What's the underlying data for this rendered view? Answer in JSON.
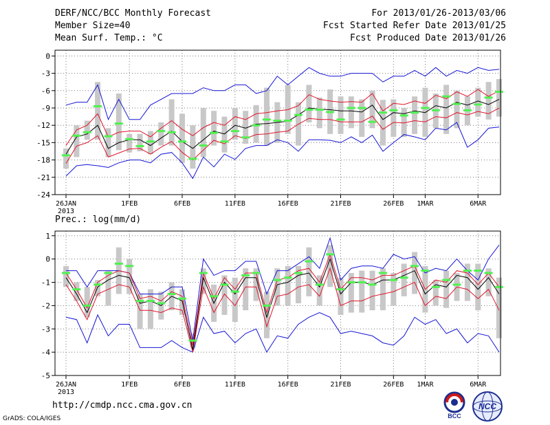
{
  "header": {
    "left": [
      "DERF/NCC/BCC Monthly Forecast",
      "Member Size=40",
      "Mean Surf. Temp.: °C"
    ],
    "right": [
      "For 2013/01/26-2013/03/06",
      "Fcst Started Refer Date 2013/01/25",
      "Fcst Produced Date 2013/01/26"
    ]
  },
  "footer": {
    "url": "http://cmdp.ncc.cma.gov.cn",
    "grads": "GrADS: COLA/IGES",
    "logo_bcc": "BCC",
    "logo_ncc": "NCC"
  },
  "colors": {
    "box": "#c8c8c8",
    "median": "#4ff24f",
    "mean": "#000000",
    "inner": "#e0142a",
    "outer": "#1414d6"
  },
  "chart_data": [
    {
      "type": "line",
      "title": "Mean Surf. Temp.: °C",
      "x_ticks": [
        "26JAN",
        "1FEB",
        "6FEB",
        "11FEB",
        "16FEB",
        "21FEB",
        "26FEB",
        "1MAR",
        "6MAR"
      ],
      "x_tick_days": [
        0,
        6,
        11,
        16,
        21,
        26,
        31,
        34,
        39
      ],
      "x_sublabel": "2013",
      "ylim": [
        -24,
        1
      ],
      "y_ticks": [
        0,
        -3,
        -6,
        -9,
        -12,
        -15,
        -18,
        -21,
        -24
      ],
      "series": [
        {
          "name": "mean",
          "values": [
            -17,
            -14,
            -13.5,
            -12,
            -16,
            -15,
            -14.5,
            -14.5,
            -15.5,
            -14.2,
            -13,
            -14.8,
            -16,
            -14.5,
            -13,
            -13.5,
            -12,
            -12.5,
            -11.8,
            -11.7,
            -11.5,
            -11.3,
            -10.2,
            -9,
            -9.2,
            -9.3,
            -9.5,
            -9.5,
            -9.7,
            -8.5,
            -11,
            -9.8,
            -10,
            -9.5,
            -9.8,
            -8.6,
            -9,
            -8,
            -8.5,
            -7.8,
            -8.4,
            -7.5
          ]
        },
        {
          "name": "upper-inner",
          "values": [
            -15.5,
            -12.8,
            -12,
            -10,
            -14,
            -13.2,
            -13,
            -13,
            -14,
            -12.5,
            -11.2,
            -12.7,
            -13.8,
            -12.4,
            -11.5,
            -12,
            -10.5,
            -11,
            -10,
            -9.8,
            -9.5,
            -9.3,
            -8.6,
            -6.7,
            -7.5,
            -7.8,
            -8,
            -7.9,
            -8,
            -6.5,
            -9.5,
            -8.2,
            -8.4,
            -7.8,
            -8.2,
            -6.8,
            -7.4,
            -6.2,
            -7,
            -5.8,
            -7,
            -6
          ]
        },
        {
          "name": "lower-inner",
          "values": [
            -18.6,
            -15.6,
            -15,
            -13.8,
            -17.5,
            -16.8,
            -16.1,
            -16,
            -17,
            -15.8,
            -14.8,
            -16.7,
            -18,
            -16.3,
            -14.6,
            -15.2,
            -13.8,
            -14.3,
            -13.6,
            -13.5,
            -13.2,
            -13,
            -11.8,
            -10.8,
            -11,
            -11,
            -11.4,
            -11.4,
            -11.4,
            -10.4,
            -12.7,
            -11.5,
            -11.6,
            -11.2,
            -11.4,
            -10.5,
            -10.7,
            -9.8,
            -10.2,
            -9.6,
            -10,
            -9
          ]
        },
        {
          "name": "upper-outer",
          "values": [
            -8.5,
            -8,
            -8,
            -5,
            -11,
            -7.5,
            -11,
            -11,
            -8.5,
            -7.5,
            -6.5,
            -6.5,
            -6.5,
            -5.5,
            -6,
            -6,
            -5,
            -5,
            -6.5,
            -6,
            -3.5,
            -5,
            -3.5,
            -2,
            -3,
            -3.5,
            -3.5,
            -3,
            -3,
            -3,
            -4.5,
            -3.5,
            -3.5,
            -2.5,
            -3.5,
            -2,
            -3.5,
            -2.5,
            -3,
            -2,
            -2.5,
            -2.3
          ]
        },
        {
          "name": "lower-outer",
          "values": [
            -20.8,
            -19,
            -18.8,
            -19,
            -19.3,
            -18.5,
            -18,
            -18,
            -18.5,
            -17,
            -16.7,
            -18.5,
            -21.2,
            -17.5,
            -19.2,
            -17,
            -17.9,
            -16,
            -15.5,
            -15.5,
            -14.5,
            -15,
            -16.5,
            -14.5,
            -14.5,
            -14.6,
            -15,
            -14,
            -15,
            -13.7,
            -16.5,
            -15,
            -13.6,
            -14,
            -14.5,
            -12.5,
            -12.8,
            -11.5,
            -15.8,
            -14.5,
            -12.5,
            -12.3
          ]
        },
        {
          "name": "median",
          "values": [
            -17.2,
            -13.8,
            -13.2,
            -8.7,
            -13.9,
            -11.7,
            -14.4,
            -15.6,
            -14.8,
            -13,
            -13.2,
            -14.8,
            -17.8,
            -15.5,
            -13.3,
            -14.8,
            -13,
            -14.1,
            -12,
            -11,
            -11.2,
            -11.2,
            -10.2,
            -9.3,
            -9.3,
            -9.7,
            -11,
            -9,
            -9,
            -11.4,
            -9.8,
            -9.4,
            -10.3,
            -9.8,
            -9,
            -9.4,
            -7,
            -8.3,
            -9.4,
            -8.4,
            -7.2,
            -6.2
          ]
        },
        {
          "name": "box-top",
          "values": [
            -16,
            -12,
            -11.2,
            -4.5,
            -12.5,
            -6.5,
            -13.5,
            -13.5,
            -13,
            -11.5,
            -7.5,
            -10,
            -12,
            -9,
            -9.5,
            -10.5,
            -9,
            -9.5,
            -8.5,
            -5.5,
            -8,
            -5,
            -8,
            -5,
            -7.2,
            -5.8,
            -7,
            -7,
            -7.5,
            -6,
            -7.6,
            -7.5,
            -9,
            -7,
            -5.5,
            -6.5,
            -5,
            -6,
            -7,
            -5.5,
            -4.5,
            -4
          ]
        },
        {
          "name": "box-bottom",
          "values": [
            -19.5,
            -17.5,
            -14.5,
            -14.5,
            -17.5,
            -16.3,
            -16.7,
            -16.5,
            -17,
            -15.5,
            -15.5,
            -18.5,
            -19.5,
            -17.5,
            -15.5,
            -16.7,
            -14.5,
            -15.2,
            -15,
            -15.5,
            -15,
            -13.5,
            -15.5,
            -11.5,
            -12.5,
            -13.5,
            -13.5,
            -12.5,
            -14,
            -12.5,
            -15.5,
            -14,
            -14,
            -13.5,
            -14,
            -12.5,
            -13.5,
            -12.5,
            -12,
            -10.5,
            -11,
            -10.5
          ]
        }
      ]
    },
    {
      "type": "line",
      "title": "Prec.: log(mm/d)",
      "x_ticks": [
        "26JAN",
        "1FEB",
        "6FEB",
        "11FEB",
        "16FEB",
        "21FEB",
        "26FEB",
        "1MAR",
        "6MAR"
      ],
      "x_tick_days": [
        0,
        6,
        11,
        16,
        21,
        26,
        31,
        34,
        39
      ],
      "x_sublabel": "2013",
      "ylim": [
        -5,
        1.2
      ],
      "y_ticks": [
        1,
        0,
        -1,
        -2,
        -3,
        -4,
        -5
      ],
      "series": [
        {
          "name": "mean",
          "values": [
            -0.8,
            -1.5,
            -2.3,
            -1.2,
            -0.9,
            -0.7,
            -0.8,
            -1.9,
            -1.8,
            -2,
            -1.6,
            -1.8,
            -3.9,
            -0.8,
            -1.9,
            -1,
            -1.5,
            -0.8,
            -0.8,
            -2.5,
            -1.1,
            -1,
            -0.7,
            -0.6,
            -1.2,
            0,
            -1.5,
            -1,
            -1,
            -1.1,
            -0.9,
            -0.9,
            -0.7,
            -0.5,
            -1.5,
            -1.1,
            -1.2,
            -0.7,
            -0.8,
            -1.3,
            -0.8,
            -1.5
          ]
        },
        {
          "name": "upper-inner",
          "values": [
            -0.6,
            -1.3,
            -2.1,
            -1,
            -0.7,
            -0.5,
            -0.6,
            -1.7,
            -1.6,
            -1.8,
            -1.4,
            -1.6,
            -3.7,
            -0.6,
            -1.7,
            -0.8,
            -1.3,
            -0.6,
            -0.6,
            -2.3,
            -0.9,
            -0.8,
            -0.5,
            -0.4,
            -1,
            0.2,
            -1.3,
            -0.8,
            -0.8,
            -0.9,
            -0.7,
            -0.7,
            -0.5,
            -0.3,
            -1.3,
            -0.9,
            -1,
            -0.5,
            -0.6,
            -1.1,
            -0.6,
            -1.2
          ]
        },
        {
          "name": "lower-inner",
          "values": [
            -1.1,
            -1.8,
            -2.6,
            -1.5,
            -1.3,
            -1.1,
            -1.2,
            -2.2,
            -2.2,
            -2.3,
            -2.1,
            -2.2,
            -4,
            -1.2,
            -2.3,
            -1.5,
            -2,
            -1.2,
            -1.2,
            -2.9,
            -1.6,
            -1.5,
            -1.2,
            -1.1,
            -1.6,
            -0.4,
            -2,
            -1.8,
            -1.8,
            -1.6,
            -1.5,
            -1.4,
            -1.2,
            -1,
            -2,
            -1.6,
            -1.7,
            -1.2,
            -1.3,
            -1.7,
            -1.3,
            -2.2
          ]
        },
        {
          "name": "upper-outer",
          "values": [
            -0.5,
            -0.5,
            -1.2,
            -0.5,
            -0.5,
            -0.5,
            -0.6,
            -1.5,
            -1.5,
            -1.5,
            -1.2,
            -1.2,
            -3.5,
            0,
            -0.7,
            -0.5,
            -0.5,
            -0.1,
            -0.1,
            -1.5,
            -0.5,
            -0.5,
            -0.2,
            0.1,
            -0.4,
            0.9,
            -0.9,
            -0.4,
            -0.3,
            -0.3,
            -0.4,
            0.2,
            0,
            0.1,
            -0.6,
            -0.4,
            -0.5,
            0,
            -0.5,
            -0.9,
            0,
            0.6
          ]
        },
        {
          "name": "lower-outer",
          "values": [
            -2.5,
            -2.6,
            -3.6,
            -2.4,
            -3.3,
            -2.8,
            -2.8,
            -3.8,
            -3.8,
            -3.8,
            -3.5,
            -3.8,
            -4,
            -2.5,
            -3.2,
            -3.1,
            -3.6,
            -3.2,
            -3,
            -4,
            -3.3,
            -3.4,
            -2.8,
            -2.5,
            -2.3,
            -2.5,
            -3.2,
            -3.1,
            -3.2,
            -3.3,
            -3.6,
            -3.7,
            -3.3,
            -2.5,
            -2.8,
            -2.6,
            -3.2,
            -3,
            -3.6,
            -3.2,
            -3.3,
            -4
          ]
        },
        {
          "name": "median",
          "values": [
            -0.6,
            -1.3,
            -2,
            -1.1,
            -0.6,
            -0.2,
            -0.3,
            -1.8,
            -1.8,
            -1.9,
            -1.5,
            -1.7,
            -3.5,
            -0.6,
            -1.6,
            -1.1,
            -1.4,
            -0.7,
            -0.6,
            -2,
            -0.9,
            -0.8,
            -0.6,
            -0.1,
            -1.1,
            0.2,
            -1.3,
            -1,
            -1,
            -1.1,
            -0.6,
            -0.9,
            -0.8,
            -0.3,
            -0.5,
            -1.2,
            -0.9,
            -1.1,
            -0.5,
            -0.5,
            -0.6,
            -1.2
          ]
        },
        {
          "name": "box-top",
          "values": [
            -0.3,
            -1,
            -1.2,
            -0.9,
            -0.5,
            0.5,
            0,
            -1.5,
            -1.3,
            -1.4,
            -1,
            -1.3,
            -3.2,
            -0.4,
            -1.1,
            -0.7,
            -0.8,
            -0.4,
            -0.4,
            -1.4,
            -0.4,
            -0.3,
            -0.3,
            0.5,
            -0.7,
            0.6,
            -0.8,
            -0.6,
            -0.5,
            -0.5,
            -0.4,
            -0.6,
            -0.2,
            0.3,
            -0.3,
            -0.9,
            -0.5,
            -0.6,
            -0.2,
            -0.2,
            -0.4,
            -0.8
          ]
        },
        {
          "name": "box-bottom",
          "values": [
            -1.2,
            -1.8,
            -2.5,
            -1.6,
            -2,
            -1.5,
            -1.5,
            -3,
            -3,
            -2.6,
            -2.2,
            -2.4,
            -3.8,
            -1.5,
            -2.7,
            -2.4,
            -2.7,
            -2.2,
            -1.8,
            -3.4,
            -2,
            -2,
            -1.9,
            -1.6,
            -2,
            -1.2,
            -2.4,
            -2.3,
            -2.3,
            -2.2,
            -2.2,
            -2,
            -1.6,
            -1.5,
            -2.3,
            -2,
            -2.1,
            -1.8,
            -1.8,
            -2.2,
            -1.6,
            -3.4
          ]
        }
      ]
    }
  ]
}
